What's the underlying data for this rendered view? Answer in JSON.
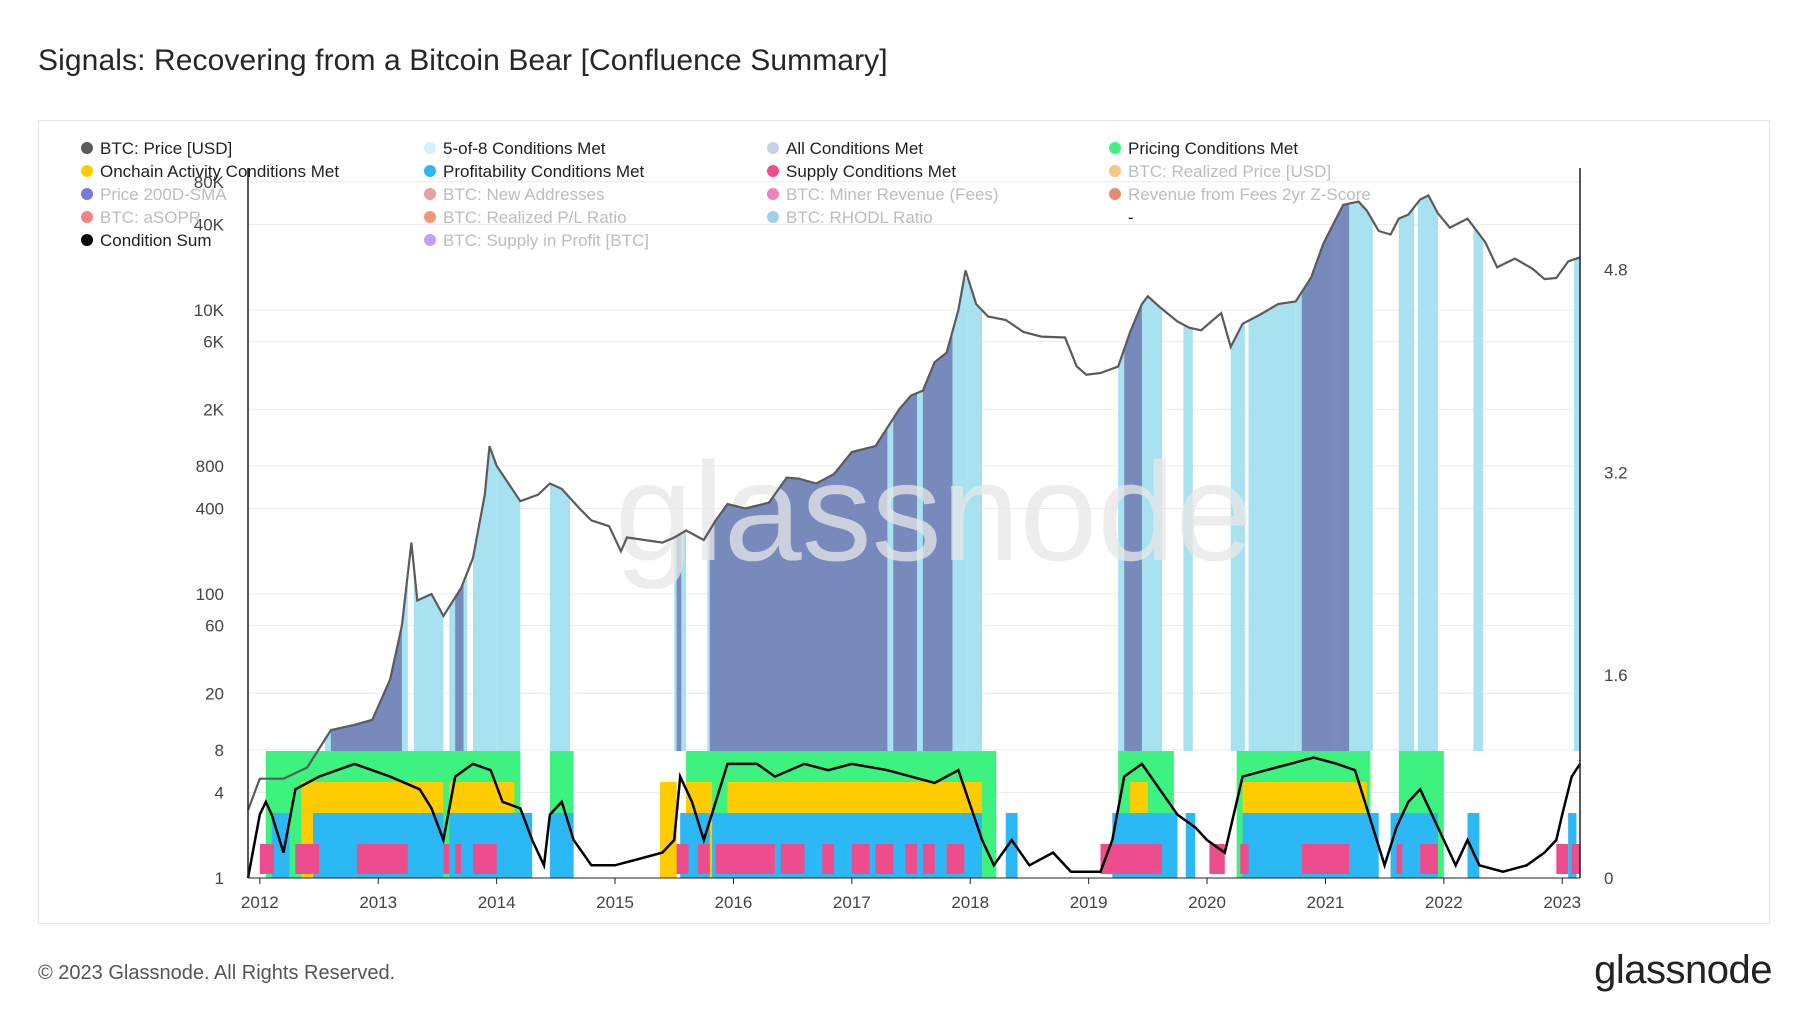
{
  "title": "Signals: Recovering from a Bitcoin Bear [Confluence Summary]",
  "footer": {
    "copyright": "© 2023 Glassnode. All Rights Reserved.",
    "logo": "glassnode"
  },
  "watermark": "glassnode",
  "chart_data": {
    "type": "area",
    "x_ticks": [
      "2012",
      "2013",
      "2014",
      "2015",
      "2016",
      "2017",
      "2018",
      "2019",
      "2020",
      "2021",
      "2022",
      "2023"
    ],
    "x_range": [
      2011.9,
      2023.15
    ],
    "y_left": {
      "scale": "log",
      "ticks": [
        1,
        4,
        8,
        20,
        60,
        100,
        400,
        800,
        2000,
        6000,
        10000,
        40000,
        80000
      ],
      "tick_labels": [
        "1",
        "4",
        "8",
        "20",
        "60",
        "100",
        "400",
        "800",
        "2K",
        "6K",
        "10K",
        "40K",
        "80K"
      ],
      "range": [
        1,
        100000
      ]
    },
    "y_right": {
      "ticks": [
        0,
        1.6,
        3.2,
        4.8
      ],
      "tick_labels": [
        "0",
        "1.6",
        "3.2",
        "4.8"
      ],
      "range": [
        0,
        5.6
      ]
    },
    "legend": [
      {
        "name": "BTC: Price [USD]",
        "color": "#5b5b5b",
        "active": true
      },
      {
        "name": "5-of-8 Conditions Met",
        "color": "#d6f1f9",
        "active": true
      },
      {
        "name": "All Conditions Met",
        "color": "#c9cde6",
        "active": true
      },
      {
        "name": "Pricing Conditions Met",
        "color": "#3df27f",
        "active": true
      },
      {
        "name": "Onchain Activity Conditions Met",
        "color": "#ffcc00",
        "active": true
      },
      {
        "name": "Profitability Conditions Met",
        "color": "#2bb8f5",
        "active": true
      },
      {
        "name": "Supply Conditions Met",
        "color": "#ee4d8d",
        "active": true
      },
      {
        "name": "BTC: Realized Price [USD]",
        "color": "#f0a030",
        "active": false
      },
      {
        "name": "Price 200D-SMA",
        "color": "#2020c0",
        "active": false
      },
      {
        "name": "BTC: New Addresses",
        "color": "#d06070",
        "active": false
      },
      {
        "name": "BTC: Miner Revenue (Fees)",
        "color": "#e8308a",
        "active": false
      },
      {
        "name": "Revenue from Fees 2yr Z-Score",
        "color": "#d04010",
        "active": false
      },
      {
        "name": "BTC: aSOPR",
        "color": "#f03030",
        "active": false
      },
      {
        "name": "BTC: Realized P/L Ratio",
        "color": "#f05020",
        "active": false
      },
      {
        "name": "BTC: RHODL Ratio",
        "color": "#60b0d8",
        "active": false
      },
      {
        "name": "-",
        "color": "",
        "active": true
      },
      {
        "name": "Condition Sum",
        "color": "#000000",
        "active": true
      },
      {
        "name": "BTC: Supply in Profit [BTC]",
        "color": "#a060f0",
        "active": false
      }
    ],
    "price_series": {
      "name": "BTC: Price [USD]",
      "points": [
        [
          2011.9,
          3
        ],
        [
          2012.0,
          5
        ],
        [
          2012.2,
          5
        ],
        [
          2012.4,
          6
        ],
        [
          2012.6,
          11
        ],
        [
          2012.8,
          12
        ],
        [
          2012.95,
          13
        ],
        [
          2013.1,
          25
        ],
        [
          2013.2,
          60
        ],
        [
          2013.28,
          230
        ],
        [
          2013.33,
          90
        ],
        [
          2013.45,
          100
        ],
        [
          2013.55,
          70
        ],
        [
          2013.7,
          110
        ],
        [
          2013.8,
          180
        ],
        [
          2013.9,
          500
        ],
        [
          2013.94,
          1100
        ],
        [
          2014.0,
          800
        ],
        [
          2014.1,
          600
        ],
        [
          2014.2,
          450
        ],
        [
          2014.35,
          500
        ],
        [
          2014.45,
          600
        ],
        [
          2014.55,
          550
        ],
        [
          2014.7,
          400
        ],
        [
          2014.8,
          330
        ],
        [
          2014.95,
          300
        ],
        [
          2015.05,
          200
        ],
        [
          2015.1,
          250
        ],
        [
          2015.25,
          240
        ],
        [
          2015.4,
          230
        ],
        [
          2015.5,
          250
        ],
        [
          2015.6,
          280
        ],
        [
          2015.75,
          240
        ],
        [
          2015.85,
          330
        ],
        [
          2015.95,
          430
        ],
        [
          2016.1,
          400
        ],
        [
          2016.3,
          440
        ],
        [
          2016.45,
          660
        ],
        [
          2016.55,
          650
        ],
        [
          2016.7,
          600
        ],
        [
          2016.85,
          700
        ],
        [
          2017.0,
          1000
        ],
        [
          2017.2,
          1100
        ],
        [
          2017.4,
          2000
        ],
        [
          2017.5,
          2500
        ],
        [
          2017.6,
          2700
        ],
        [
          2017.7,
          4300
        ],
        [
          2017.8,
          5000
        ],
        [
          2017.9,
          10000
        ],
        [
          2017.96,
          19000
        ],
        [
          2018.05,
          11000
        ],
        [
          2018.15,
          9000
        ],
        [
          2018.3,
          8500
        ],
        [
          2018.45,
          7000
        ],
        [
          2018.6,
          6500
        ],
        [
          2018.8,
          6400
        ],
        [
          2018.9,
          4000
        ],
        [
          2018.98,
          3500
        ],
        [
          2019.1,
          3600
        ],
        [
          2019.25,
          4000
        ],
        [
          2019.35,
          7000
        ],
        [
          2019.45,
          11000
        ],
        [
          2019.5,
          12500
        ],
        [
          2019.6,
          10500
        ],
        [
          2019.75,
          8300
        ],
        [
          2019.85,
          7500
        ],
        [
          2019.95,
          7200
        ],
        [
          2020.05,
          8500
        ],
        [
          2020.12,
          9500
        ],
        [
          2020.2,
          5500
        ],
        [
          2020.3,
          8000
        ],
        [
          2020.45,
          9300
        ],
        [
          2020.6,
          11000
        ],
        [
          2020.75,
          11500
        ],
        [
          2020.88,
          17000
        ],
        [
          2020.98,
          29000
        ],
        [
          2021.05,
          38000
        ],
        [
          2021.15,
          55000
        ],
        [
          2021.28,
          58000
        ],
        [
          2021.35,
          50000
        ],
        [
          2021.45,
          36000
        ],
        [
          2021.55,
          34000
        ],
        [
          2021.62,
          44000
        ],
        [
          2021.7,
          47000
        ],
        [
          2021.8,
          60000
        ],
        [
          2021.87,
          64000
        ],
        [
          2021.95,
          48000
        ],
        [
          2022.05,
          38000
        ],
        [
          2022.2,
          44000
        ],
        [
          2022.35,
          30000
        ],
        [
          2022.45,
          20000
        ],
        [
          2022.6,
          23000
        ],
        [
          2022.75,
          19500
        ],
        [
          2022.85,
          16500
        ],
        [
          2022.95,
          16800
        ],
        [
          2023.05,
          22000
        ],
        [
          2023.15,
          23500
        ]
      ]
    },
    "condition_sum": {
      "name": "Condition Sum",
      "points": [
        [
          2011.9,
          0
        ],
        [
          2012.0,
          0.5
        ],
        [
          2012.05,
          0.6
        ],
        [
          2012.1,
          0.5
        ],
        [
          2012.2,
          0.2
        ],
        [
          2012.3,
          0.7
        ],
        [
          2012.5,
          0.8
        ],
        [
          2012.8,
          0.9
        ],
        [
          2013.1,
          0.8
        ],
        [
          2013.35,
          0.7
        ],
        [
          2013.45,
          0.55
        ],
        [
          2013.55,
          0.3
        ],
        [
          2013.65,
          0.8
        ],
        [
          2013.8,
          0.9
        ],
        [
          2013.95,
          0.85
        ],
        [
          2014.05,
          0.6
        ],
        [
          2014.2,
          0.55
        ],
        [
          2014.3,
          0.3
        ],
        [
          2014.4,
          0.1
        ],
        [
          2014.45,
          0.5
        ],
        [
          2014.55,
          0.6
        ],
        [
          2014.65,
          0.3
        ],
        [
          2014.8,
          0.1
        ],
        [
          2015.0,
          0.1
        ],
        [
          2015.2,
          0.15
        ],
        [
          2015.4,
          0.2
        ],
        [
          2015.5,
          0.3
        ],
        [
          2015.55,
          0.8
        ],
        [
          2015.65,
          0.6
        ],
        [
          2015.75,
          0.3
        ],
        [
          2015.85,
          0.6
        ],
        [
          2015.95,
          0.9
        ],
        [
          2016.2,
          0.9
        ],
        [
          2016.35,
          0.8
        ],
        [
          2016.6,
          0.9
        ],
        [
          2016.8,
          0.85
        ],
        [
          2017.0,
          0.9
        ],
        [
          2017.3,
          0.85
        ],
        [
          2017.5,
          0.8
        ],
        [
          2017.7,
          0.75
        ],
        [
          2017.9,
          0.85
        ],
        [
          2018.1,
          0.3
        ],
        [
          2018.2,
          0.1
        ],
        [
          2018.35,
          0.3
        ],
        [
          2018.5,
          0.1
        ],
        [
          2018.7,
          0.2
        ],
        [
          2018.85,
          0.05
        ],
        [
          2019.1,
          0.05
        ],
        [
          2019.2,
          0.3
        ],
        [
          2019.3,
          0.8
        ],
        [
          2019.45,
          0.9
        ],
        [
          2019.6,
          0.7
        ],
        [
          2019.75,
          0.5
        ],
        [
          2019.9,
          0.4
        ],
        [
          2020.0,
          0.3
        ],
        [
          2020.15,
          0.2
        ],
        [
          2020.3,
          0.8
        ],
        [
          2020.5,
          0.85
        ],
        [
          2020.7,
          0.9
        ],
        [
          2020.9,
          0.95
        ],
        [
          2021.1,
          0.9
        ],
        [
          2021.25,
          0.85
        ],
        [
          2021.4,
          0.4
        ],
        [
          2021.5,
          0.1
        ],
        [
          2021.6,
          0.4
        ],
        [
          2021.7,
          0.6
        ],
        [
          2021.8,
          0.7
        ],
        [
          2021.9,
          0.5
        ],
        [
          2022.0,
          0.3
        ],
        [
          2022.1,
          0.1
        ],
        [
          2022.2,
          0.3
        ],
        [
          2022.3,
          0.1
        ],
        [
          2022.5,
          0.05
        ],
        [
          2022.7,
          0.1
        ],
        [
          2022.85,
          0.2
        ],
        [
          2022.95,
          0.3
        ],
        [
          2023.0,
          0.5
        ],
        [
          2023.08,
          0.8
        ],
        [
          2023.15,
          0.9
        ]
      ]
    },
    "bands": {
      "five_of_eight": {
        "color": "#a8e2f1",
        "ranges": [
          [
            2012.55,
            2013.25
          ],
          [
            2013.3,
            2013.55
          ],
          [
            2013.6,
            2013.75
          ],
          [
            2013.8,
            2014.0
          ],
          [
            2014.0,
            2014.2
          ],
          [
            2014.45,
            2014.62
          ],
          [
            2015.5,
            2015.6
          ],
          [
            2015.78,
            2016.05
          ],
          [
            2016.05,
            2017.15
          ],
          [
            2017.15,
            2017.98
          ],
          [
            2017.98,
            2018.1
          ],
          [
            2019.25,
            2019.62
          ],
          [
            2019.8,
            2019.88
          ],
          [
            2020.2,
            2020.32
          ],
          [
            2020.35,
            2020.75
          ],
          [
            2020.75,
            2021.05
          ],
          [
            2021.1,
            2021.4
          ],
          [
            2021.62,
            2021.75
          ],
          [
            2021.78,
            2021.95
          ],
          [
            2022.25,
            2022.33
          ],
          [
            2023.1,
            2023.15
          ]
        ]
      },
      "all_conditions": {
        "color": "#7584b8",
        "ranges": [
          [
            2012.6,
            2013.2
          ],
          [
            2013.65,
            2013.72
          ],
          [
            2015.52,
            2015.56
          ],
          [
            2015.8,
            2016.6
          ],
          [
            2016.6,
            2017.3
          ],
          [
            2017.35,
            2017.55
          ],
          [
            2017.6,
            2017.85
          ],
          [
            2019.3,
            2019.45
          ],
          [
            2020.8,
            2021.2
          ]
        ]
      },
      "pricing": {
        "color": "#3df27f",
        "ranges": [
          [
            2012.05,
            2014.2
          ],
          [
            2014.45,
            2014.65
          ],
          [
            2015.6,
            2018.22
          ],
          [
            2019.25,
            2019.72
          ],
          [
            2020.25,
            2021.38
          ],
          [
            2021.62,
            2022.0
          ]
        ]
      },
      "onchain_activity": {
        "color": "#ffcc00",
        "ranges": [
          [
            2012.35,
            2013.55
          ],
          [
            2013.6,
            2014.15
          ],
          [
            2015.38,
            2015.52
          ],
          [
            2015.6,
            2015.82
          ],
          [
            2015.95,
            2018.1
          ],
          [
            2019.35,
            2019.5
          ],
          [
            2020.3,
            2021.35
          ]
        ]
      },
      "profitability": {
        "color": "#2bb8f5",
        "ranges": [
          [
            2012.1,
            2012.25
          ],
          [
            2012.45,
            2013.55
          ],
          [
            2013.6,
            2014.3
          ],
          [
            2014.45,
            2014.65
          ],
          [
            2015.55,
            2015.8
          ],
          [
            2015.82,
            2018.1
          ],
          [
            2018.3,
            2018.4
          ],
          [
            2019.2,
            2019.75
          ],
          [
            2019.82,
            2019.9
          ],
          [
            2020.3,
            2021.45
          ],
          [
            2021.55,
            2021.95
          ],
          [
            2022.2,
            2022.3
          ],
          [
            2023.05,
            2023.12
          ]
        ]
      },
      "supply": {
        "color": "#ee4d8d",
        "ranges": [
          [
            2012.0,
            2012.12
          ],
          [
            2012.3,
            2012.5
          ],
          [
            2012.82,
            2013.25
          ],
          [
            2013.55,
            2013.6
          ],
          [
            2013.65,
            2013.7
          ],
          [
            2013.8,
            2014.0
          ],
          [
            2015.52,
            2015.62
          ],
          [
            2015.7,
            2015.8
          ],
          [
            2015.85,
            2016.35
          ],
          [
            2016.4,
            2016.6
          ],
          [
            2016.75,
            2016.85
          ],
          [
            2017.0,
            2017.15
          ],
          [
            2017.2,
            2017.35
          ],
          [
            2017.45,
            2017.55
          ],
          [
            2017.6,
            2017.7
          ],
          [
            2017.8,
            2017.95
          ],
          [
            2019.1,
            2019.62
          ],
          [
            2020.02,
            2020.15
          ],
          [
            2020.28,
            2020.35
          ],
          [
            2020.8,
            2021.2
          ],
          [
            2021.6,
            2021.65
          ],
          [
            2021.8,
            2021.95
          ],
          [
            2022.95,
            2023.05
          ],
          [
            2023.08,
            2023.15
          ]
        ]
      }
    }
  }
}
